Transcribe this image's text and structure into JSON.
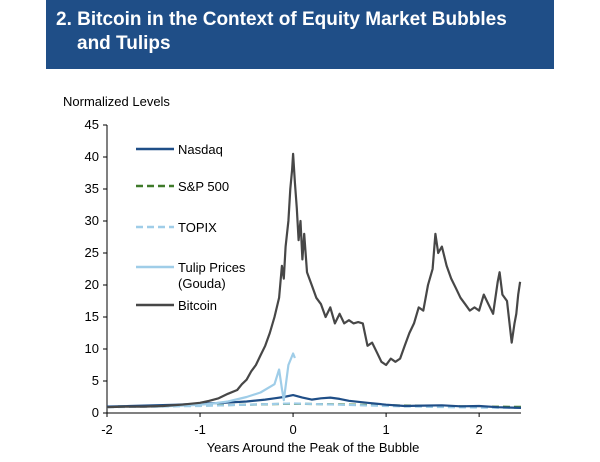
{
  "title": {
    "line1": "2. Bitcoin in the Context of Equity Market Bubbles",
    "line2": "and Tulips"
  },
  "chart_data": {
    "type": "line",
    "ylabel": "Normalized Levels",
    "xlabel": "Years Around the Peak of the Bubble",
    "xlim": [
      -2,
      2.45
    ],
    "ylim": [
      0,
      45
    ],
    "xticks": [
      -2,
      -1,
      0,
      1,
      2
    ],
    "xtick_labels": [
      "-2",
      "-1",
      "0",
      "1",
      "2"
    ],
    "yticks": [
      0,
      5,
      10,
      15,
      20,
      25,
      30,
      35,
      40,
      45
    ],
    "ytick_labels": [
      "0",
      "5",
      "10",
      "15",
      "20",
      "25",
      "30",
      "35",
      "40",
      "45"
    ],
    "legend_position": "upper-left",
    "series": [
      {
        "name": "Nasdaq",
        "color": "#1f4e87",
        "dash": "solid",
        "x": [
          -2,
          -1.75,
          -1.5,
          -1.25,
          -1,
          -0.75,
          -0.5,
          -0.3,
          -0.2,
          -0.1,
          0,
          0.1,
          0.2,
          0.3,
          0.4,
          0.5,
          0.6,
          0.8,
          1,
          1.2,
          1.4,
          1.6,
          1.8,
          2,
          2.2,
          2.45
        ],
        "y": [
          1,
          1.1,
          1.2,
          1.3,
          1.45,
          1.6,
          1.8,
          2.1,
          2.3,
          2.5,
          2.8,
          2.4,
          2.1,
          2.3,
          2.4,
          2.2,
          1.9,
          1.6,
          1.3,
          1.1,
          1.15,
          1.2,
          1.05,
          1.1,
          0.9,
          0.8
        ]
      },
      {
        "name": "S&P 500",
        "color": "#3f7a2a",
        "dash": "dashed",
        "x": [
          -2,
          -1.5,
          -1,
          -0.5,
          0,
          0.5,
          1,
          1.5,
          2,
          2.45
        ],
        "y": [
          1,
          1.05,
          1.15,
          1.3,
          1.45,
          1.35,
          1.2,
          1.1,
          1.0,
          0.95
        ]
      },
      {
        "name": "TOPIX",
        "color": "#9fcde8",
        "dash": "dashed",
        "x": [
          -2,
          -1.5,
          -1,
          -0.5,
          0,
          0.5,
          1,
          1.5,
          2,
          2.45
        ],
        "y": [
          0.9,
          1.0,
          1.1,
          1.3,
          1.5,
          1.3,
          1.1,
          0.95,
          0.85,
          0.8
        ]
      },
      {
        "name": "Tulip Prices (Gouda)",
        "color": "#9fcde8",
        "dash": "solid",
        "x": [
          -1.5,
          -1.3,
          -1.1,
          -0.9,
          -0.7,
          -0.5,
          -0.35,
          -0.2,
          -0.15,
          -0.12,
          -0.1,
          -0.05,
          0,
          0.02
        ],
        "y": [
          1.0,
          1.1,
          1.2,
          1.4,
          1.8,
          2.5,
          3.2,
          4.5,
          6.8,
          3.8,
          2.0,
          7.5,
          9.3,
          8.6
        ]
      },
      {
        "name": "Bitcoin",
        "color": "#474747",
        "dash": "solid",
        "x": [
          -2,
          -1.8,
          -1.6,
          -1.4,
          -1.2,
          -1.0,
          -0.9,
          -0.8,
          -0.7,
          -0.6,
          -0.55,
          -0.5,
          -0.45,
          -0.4,
          -0.35,
          -0.3,
          -0.25,
          -0.2,
          -0.15,
          -0.12,
          -0.1,
          -0.08,
          -0.05,
          -0.03,
          -0.01,
          0.0,
          0.02,
          0.04,
          0.06,
          0.08,
          0.1,
          0.12,
          0.15,
          0.2,
          0.25,
          0.3,
          0.35,
          0.4,
          0.45,
          0.5,
          0.55,
          0.6,
          0.65,
          0.7,
          0.75,
          0.8,
          0.85,
          0.9,
          0.95,
          1.0,
          1.05,
          1.1,
          1.15,
          1.2,
          1.25,
          1.3,
          1.35,
          1.4,
          1.45,
          1.5,
          1.53,
          1.56,
          1.6,
          1.65,
          1.7,
          1.75,
          1.8,
          1.85,
          1.9,
          1.95,
          2.0,
          2.05,
          2.1,
          2.15,
          2.2,
          2.22,
          2.25,
          2.3,
          2.35,
          2.38,
          2.4,
          2.42,
          2.44
        ],
        "y": [
          0.9,
          1.0,
          1.0,
          1.1,
          1.3,
          1.6,
          1.9,
          2.3,
          3.0,
          3.6,
          4.5,
          5.2,
          6.5,
          7.5,
          9.0,
          10.5,
          12.5,
          15.0,
          18.0,
          23.0,
          21.0,
          26.0,
          30.0,
          35.0,
          38.0,
          40.5,
          36.0,
          32.0,
          27.0,
          30.0,
          24.0,
          28.0,
          22.0,
          20.0,
          18.0,
          17.0,
          15.0,
          16.5,
          14.0,
          15.5,
          14.0,
          14.5,
          14.0,
          14.2,
          14.0,
          10.5,
          11.0,
          9.5,
          8.0,
          7.5,
          8.5,
          8.0,
          8.5,
          10.5,
          12.5,
          14.0,
          16.5,
          16.0,
          20.0,
          22.5,
          28.0,
          25.0,
          26.0,
          23.0,
          21.0,
          19.5,
          18.0,
          17.0,
          16.0,
          16.5,
          16.0,
          18.5,
          17.0,
          15.5,
          20.5,
          22.0,
          18.5,
          17.5,
          11.0,
          14.0,
          15.5,
          18.5,
          20.5
        ]
      }
    ]
  }
}
